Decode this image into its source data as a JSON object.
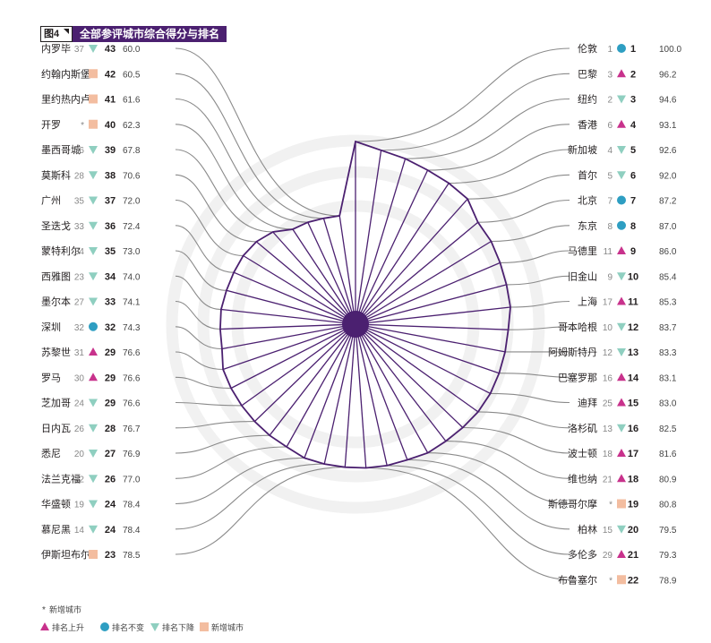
{
  "figure": {
    "number": "图4",
    "title": "全部参评城市综合得分与排名"
  },
  "legend": {
    "new_note_mark": "*",
    "new_note_text": "新增城市",
    "items": [
      {
        "key": "up",
        "label": "排名上升",
        "color": "#c8328c"
      },
      {
        "key": "same",
        "label": "排名不变",
        "color": "#2e9ec2"
      },
      {
        "key": "down",
        "label": "排名下降",
        "color": "#8fcfc0"
      },
      {
        "key": "new",
        "label": "新增城市",
        "color": "#f3bda0"
      }
    ]
  },
  "colors": {
    "accent": "#4b2070",
    "connector": "#8a8a8a",
    "ring": "#f1f1f1",
    "up": "#c8328c",
    "same": "#2e9ec2",
    "down": "#8fcfc0",
    "new": "#f3bda0"
  },
  "chart_data": {
    "type": "radar",
    "value_range": [
      0,
      100
    ],
    "columns": [
      "city",
      "prev_rank",
      "status",
      "rank",
      "score"
    ],
    "cities": [
      {
        "city": "伦敦",
        "prev": "1",
        "status": "same",
        "rank": 1,
        "score": 100.0
      },
      {
        "city": "巴黎",
        "prev": "3",
        "status": "up",
        "rank": 2,
        "score": 96.2
      },
      {
        "city": "纽约",
        "prev": "2",
        "status": "down",
        "rank": 3,
        "score": 94.6
      },
      {
        "city": "香港",
        "prev": "6",
        "status": "up",
        "rank": 4,
        "score": 93.1
      },
      {
        "city": "新加坡",
        "prev": "4",
        "status": "down",
        "rank": 5,
        "score": 92.6
      },
      {
        "city": "首尔",
        "prev": "5",
        "status": "down",
        "rank": 6,
        "score": 92.0
      },
      {
        "city": "北京",
        "prev": "7",
        "status": "same",
        "rank": 7,
        "score": 87.2
      },
      {
        "city": "东京",
        "prev": "8",
        "status": "same",
        "rank": 8,
        "score": 87.0
      },
      {
        "city": "马德里",
        "prev": "11",
        "status": "up",
        "rank": 9,
        "score": 86.0
      },
      {
        "city": "旧金山",
        "prev": "9",
        "status": "down",
        "rank": 10,
        "score": 85.4
      },
      {
        "city": "上海",
        "prev": "17",
        "status": "up",
        "rank": 11,
        "score": 85.3
      },
      {
        "city": "哥本哈根",
        "prev": "10",
        "status": "down",
        "rank": 12,
        "score": 83.7
      },
      {
        "city": "阿姆斯特丹",
        "prev": "12",
        "status": "down",
        "rank": 13,
        "score": 83.3
      },
      {
        "city": "巴塞罗那",
        "prev": "16",
        "status": "up",
        "rank": 14,
        "score": 83.1
      },
      {
        "city": "迪拜",
        "prev": "25",
        "status": "up",
        "rank": 15,
        "score": 83.0
      },
      {
        "city": "洛杉矶",
        "prev": "13",
        "status": "down",
        "rank": 16,
        "score": 82.5
      },
      {
        "city": "波士顿",
        "prev": "18",
        "status": "up",
        "rank": 17,
        "score": 81.6
      },
      {
        "city": "维也纳",
        "prev": "21",
        "status": "up",
        "rank": 18,
        "score": 80.9
      },
      {
        "city": "斯德哥尔摩",
        "prev": "*",
        "status": "new",
        "rank": 19,
        "score": 80.8
      },
      {
        "city": "柏林",
        "prev": "15",
        "status": "down",
        "rank": 20,
        "score": 79.5
      },
      {
        "city": "多伦多",
        "prev": "29",
        "status": "up",
        "rank": 21,
        "score": 79.3
      },
      {
        "city": "布鲁塞尔",
        "prev": "*",
        "status": "new",
        "rank": 22,
        "score": 78.9
      },
      {
        "city": "伊斯坦布尔",
        "prev": "*",
        "status": "new",
        "rank": 23,
        "score": 78.5
      },
      {
        "city": "慕尼黑",
        "prev": "14",
        "status": "down",
        "rank": 24,
        "score": 78.4
      },
      {
        "city": "华盛顿",
        "prev": "19",
        "status": "down",
        "rank": 24,
        "score": 78.4
      },
      {
        "city": "法兰克福",
        "prev": "22",
        "status": "down",
        "rank": 26,
        "score": 77.0
      },
      {
        "city": "悉尼",
        "prev": "20",
        "status": "down",
        "rank": 27,
        "score": 76.9
      },
      {
        "city": "日内瓦",
        "prev": "26",
        "status": "down",
        "rank": 28,
        "score": 76.7
      },
      {
        "city": "芝加哥",
        "prev": "24",
        "status": "down",
        "rank": 29,
        "score": 76.6
      },
      {
        "city": "罗马",
        "prev": "30",
        "status": "up",
        "rank": 29,
        "score": 76.6
      },
      {
        "city": "苏黎世",
        "prev": "31",
        "status": "up",
        "rank": 29,
        "score": 76.6
      },
      {
        "city": "深圳",
        "prev": "32",
        "status": "same",
        "rank": 32,
        "score": 74.3
      },
      {
        "city": "墨尔本",
        "prev": "27",
        "status": "down",
        "rank": 33,
        "score": 74.1
      },
      {
        "city": "西雅图",
        "prev": "23",
        "status": "down",
        "rank": 34,
        "score": 74.0
      },
      {
        "city": "蒙特利尔",
        "prev": "34",
        "status": "down",
        "rank": 35,
        "score": 73.0
      },
      {
        "city": "圣迭戈",
        "prev": "33",
        "status": "down",
        "rank": 36,
        "score": 72.4
      },
      {
        "city": "广州",
        "prev": "35",
        "status": "down",
        "rank": 37,
        "score": 72.0
      },
      {
        "city": "莫斯科",
        "prev": "28",
        "status": "down",
        "rank": 38,
        "score": 70.6
      },
      {
        "city": "墨西哥城",
        "prev": "36",
        "status": "down",
        "rank": 39,
        "score": 67.8
      },
      {
        "city": "开罗",
        "prev": "*",
        "status": "new",
        "rank": 40,
        "score": 62.3
      },
      {
        "city": "里约热内卢",
        "prev": "*",
        "status": "new",
        "rank": 41,
        "score": 61.6
      },
      {
        "city": "约翰内斯堡",
        "prev": "*",
        "status": "new",
        "rank": 42,
        "score": 60.5
      },
      {
        "city": "内罗毕",
        "prev": "37",
        "status": "down",
        "rank": 43,
        "score": 60.0
      }
    ]
  }
}
